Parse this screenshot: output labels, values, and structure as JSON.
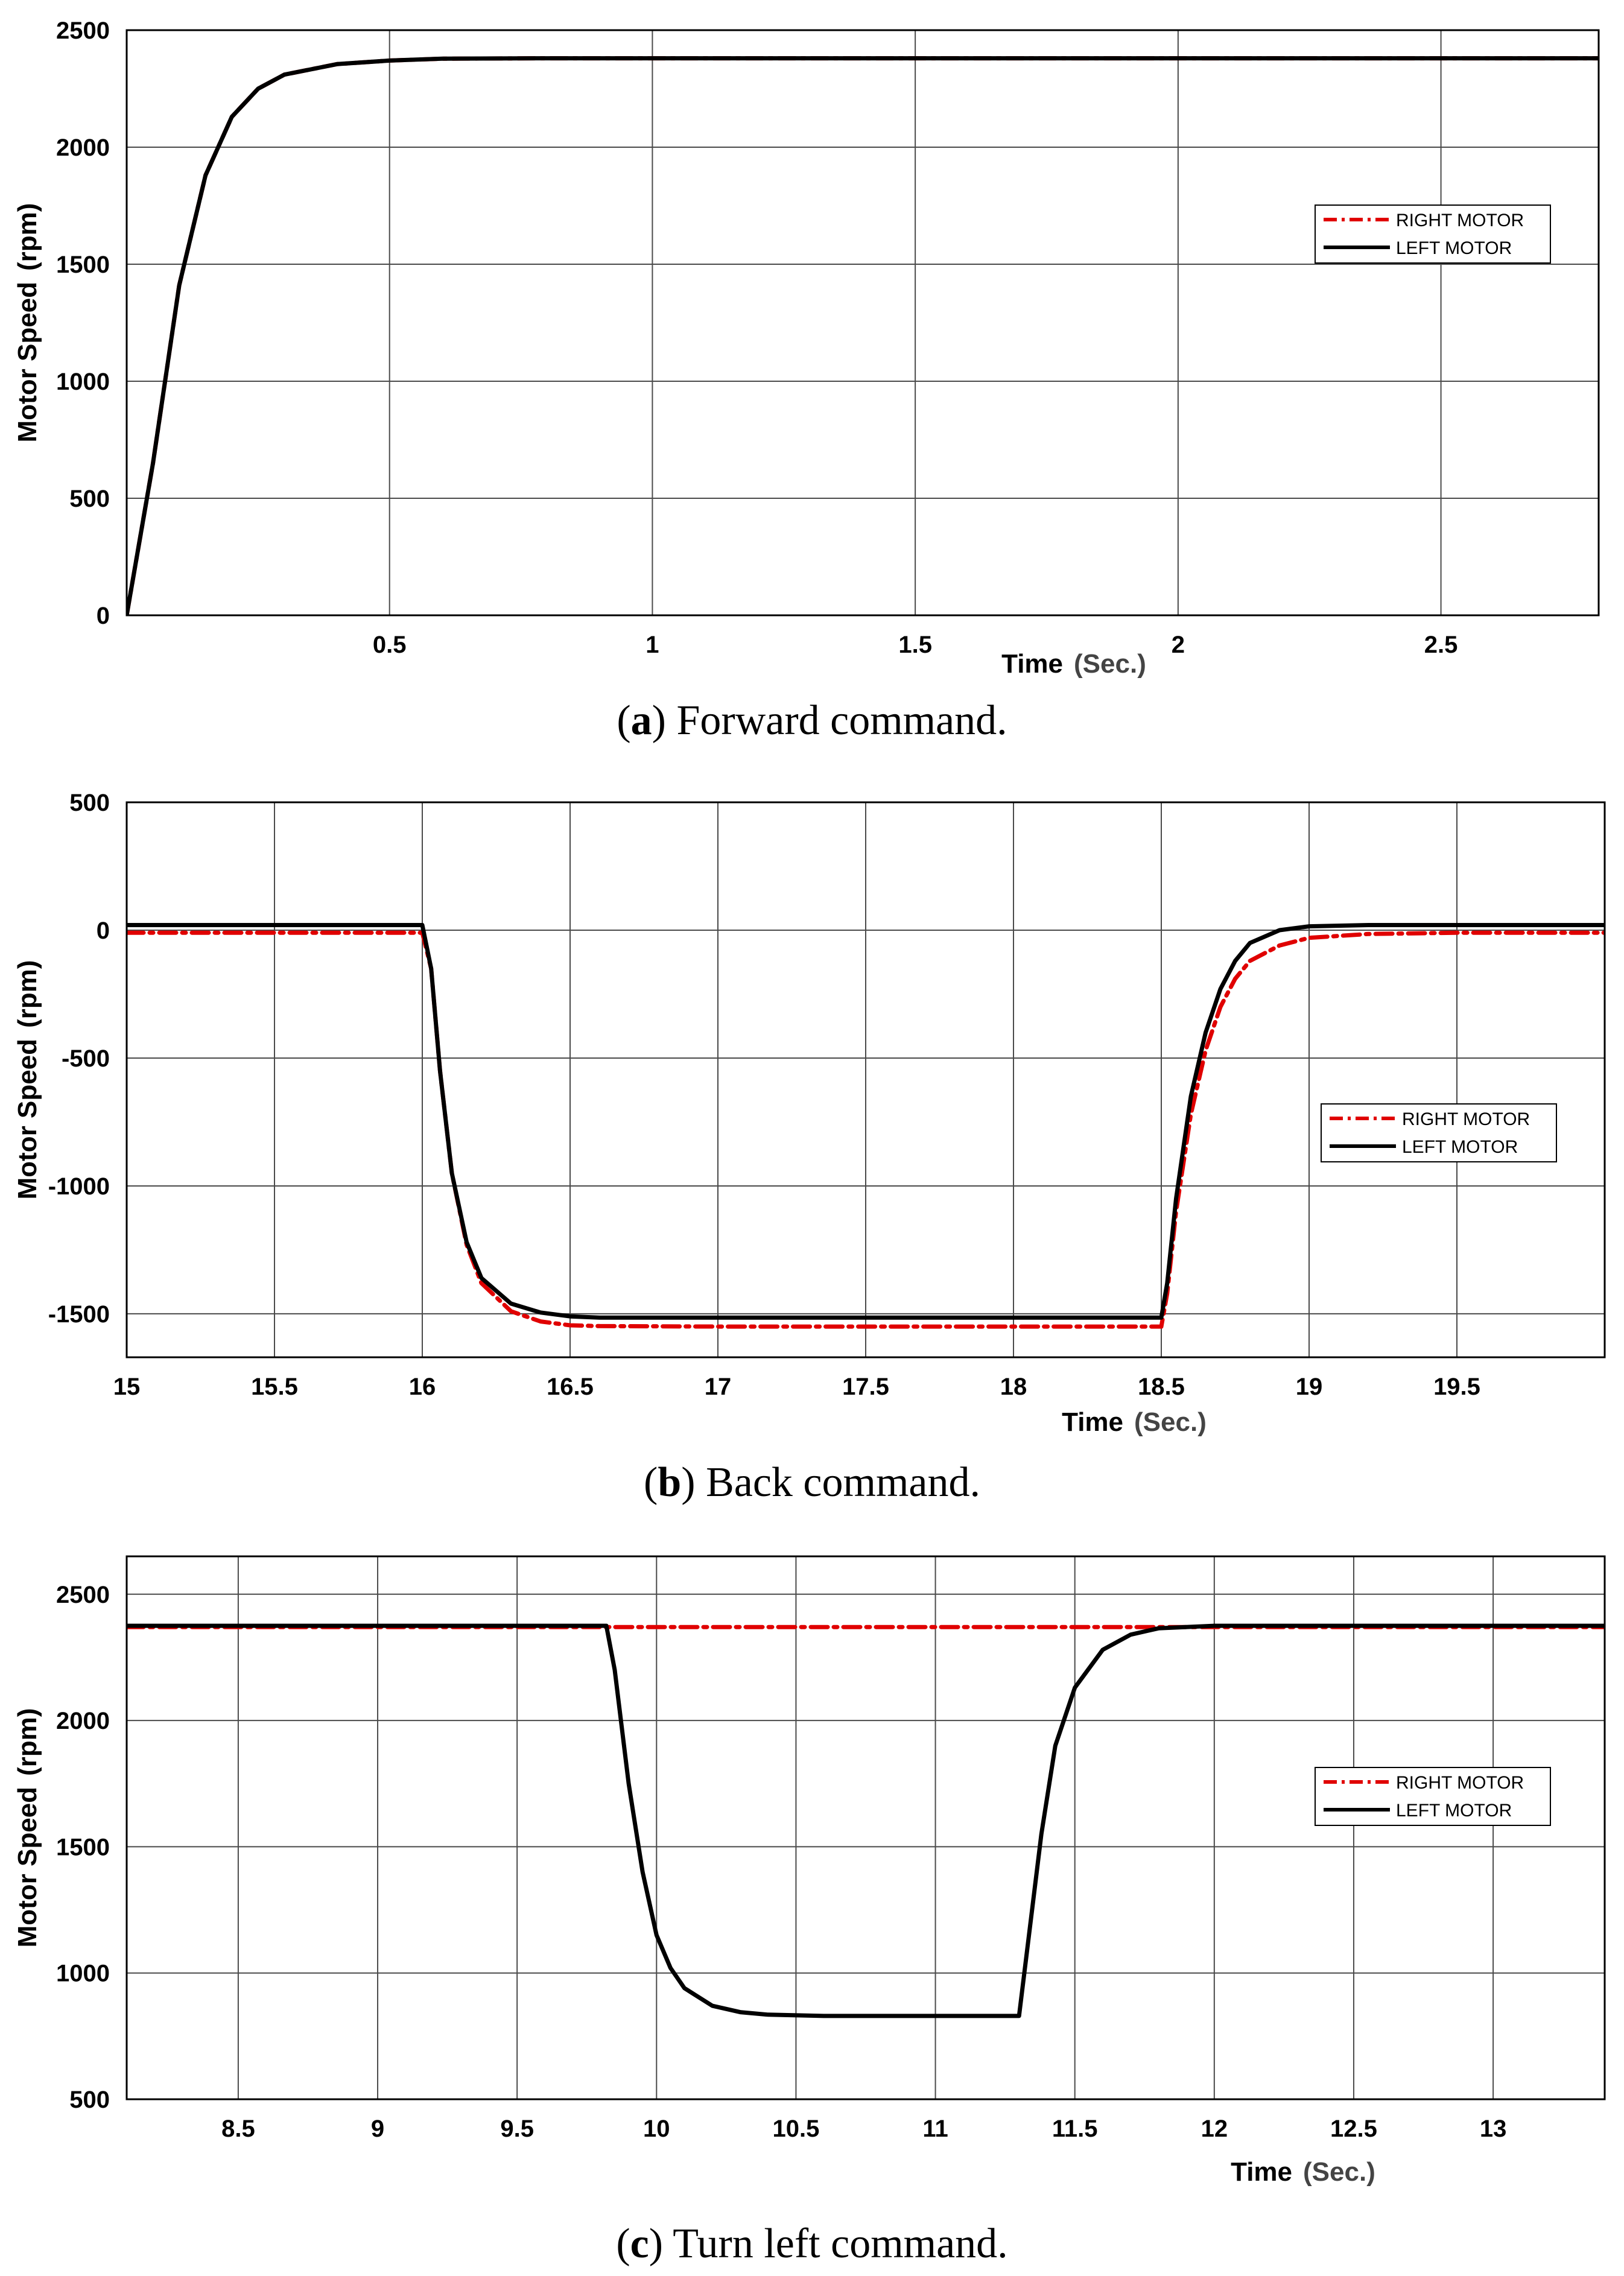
{
  "colors": {
    "right_motor": "#e00000",
    "left_motor": "#000000",
    "grid": "#4a4a4a",
    "axes": "#000000"
  },
  "chart_data": [
    {
      "id": "a",
      "type": "line",
      "caption_letter": "a",
      "caption_text": "Forward command.",
      "xlabel": "Time",
      "xlabel_unit": "(Sec.)",
      "ylabel": "Motor Speed",
      "ylabel_unit": "(rpm)",
      "xlim": [
        0,
        2.8
      ],
      "ylim": [
        0,
        2500
      ],
      "xticks": [
        0.5,
        1,
        1.5,
        2,
        2.5
      ],
      "xtick_labels": [
        "0.5",
        "1",
        "1.5",
        "2",
        "2.5"
      ],
      "yticks": [
        0,
        500,
        1000,
        1500,
        2000,
        2500
      ],
      "ytick_labels": [
        "0",
        "500",
        "1000",
        "1500",
        "2000",
        "2500"
      ],
      "grid": true,
      "legend_position": "right",
      "legend": [
        "RIGHT MOTOR",
        "LEFT MOTOR"
      ],
      "series": [
        {
          "name": "RIGHT MOTOR",
          "style": "dashdot",
          "x": [
            0,
            0.05,
            0.1,
            0.15,
            0.2,
            0.25,
            0.3,
            0.4,
            0.5,
            0.6,
            0.8,
            1.2,
            2.0,
            2.8
          ],
          "y": [
            0,
            650,
            1410,
            1880,
            2130,
            2250,
            2310,
            2355,
            2370,
            2378,
            2380,
            2380,
            2380,
            2380
          ]
        },
        {
          "name": "LEFT MOTOR",
          "style": "solid",
          "x": [
            0,
            0.05,
            0.1,
            0.15,
            0.2,
            0.25,
            0.3,
            0.4,
            0.5,
            0.6,
            0.8,
            1.2,
            2.0,
            2.8
          ],
          "y": [
            0,
            650,
            1410,
            1880,
            2130,
            2250,
            2310,
            2355,
            2370,
            2378,
            2380,
            2380,
            2380,
            2380
          ]
        }
      ]
    },
    {
      "id": "b",
      "type": "line",
      "caption_letter": "b",
      "caption_text": "Back command.",
      "xlabel": "Time",
      "xlabel_unit": "(Sec.)",
      "ylabel": "Motor Speed",
      "ylabel_unit": "(rpm)",
      "xlim": [
        15,
        20
      ],
      "ylim": [
        -1670,
        500
      ],
      "xticks": [
        15,
        15.5,
        16,
        16.5,
        17,
        17.5,
        18,
        18.5,
        19,
        19.5
      ],
      "xtick_labels": [
        "15",
        "15.5",
        "16",
        "16.5",
        "17",
        "17.5",
        "18",
        "18.5",
        "19",
        "19.5"
      ],
      "yticks": [
        -1500,
        -1000,
        -500,
        0,
        500
      ],
      "ytick_labels": [
        "-1500",
        "-1000",
        "-500",
        "0",
        "500"
      ],
      "grid": true,
      "legend_position": "right",
      "legend": [
        "RIGHT MOTOR",
        "LEFT MOTOR"
      ],
      "series": [
        {
          "name": "RIGHT MOTOR",
          "style": "dashdot",
          "x": [
            15,
            16.0,
            16.03,
            16.06,
            16.1,
            16.15,
            16.2,
            16.3,
            16.4,
            16.5,
            16.6,
            17.0,
            18.0,
            18.5,
            18.52,
            18.55,
            18.6,
            18.65,
            18.7,
            18.75,
            18.8,
            18.9,
            19.0,
            19.2,
            19.5,
            20.0
          ],
          "y": [
            -10,
            -10,
            -150,
            -550,
            -950,
            -1230,
            -1380,
            -1490,
            -1530,
            -1545,
            -1548,
            -1550,
            -1550,
            -1550,
            -1420,
            -1100,
            -720,
            -470,
            -300,
            -190,
            -120,
            -60,
            -30,
            -15,
            -10,
            -10
          ]
        },
        {
          "name": "LEFT MOTOR",
          "style": "solid",
          "x": [
            15,
            16.0,
            16.03,
            16.06,
            16.1,
            16.15,
            16.2,
            16.3,
            16.4,
            16.5,
            16.6,
            17.0,
            18.0,
            18.5,
            18.52,
            18.55,
            18.6,
            18.65,
            18.7,
            18.75,
            18.8,
            18.9,
            19.0,
            19.2,
            19.5,
            20.0
          ],
          "y": [
            20,
            20,
            -150,
            -550,
            -950,
            -1220,
            -1360,
            -1460,
            -1495,
            -1510,
            -1515,
            -1515,
            -1515,
            -1515,
            -1380,
            -1050,
            -650,
            -400,
            -230,
            -120,
            -50,
            0,
            15,
            20,
            20,
            20
          ]
        }
      ]
    },
    {
      "id": "c",
      "type": "line",
      "caption_letter": "c",
      "caption_text": "Turn left command.",
      "xlabel": "Time",
      "xlabel_unit": "(Sec.)",
      "ylabel": "Motor Speed",
      "ylabel_unit": "(rpm)",
      "xlim": [
        8.1,
        13.4
      ],
      "ylim": [
        500,
        2650
      ],
      "xticks": [
        8.5,
        9,
        9.5,
        10,
        10.5,
        11,
        11.5,
        12,
        12.5,
        13
      ],
      "xtick_labels": [
        "8.5",
        "9",
        "9.5",
        "10",
        "10.5",
        "11",
        "11.5",
        "12",
        "12.5",
        "13"
      ],
      "yticks": [
        500,
        1000,
        1500,
        2000,
        2500
      ],
      "ytick_labels": [
        "500",
        "1000",
        "1500",
        "2000",
        "2500"
      ],
      "grid": true,
      "legend_position": "right",
      "legend": [
        "RIGHT MOTOR",
        "LEFT MOTOR"
      ],
      "series": [
        {
          "name": "RIGHT MOTOR",
          "style": "dashdot",
          "x": [
            8.1,
            13.4
          ],
          "y": [
            2370,
            2370
          ]
        },
        {
          "name": "LEFT MOTOR",
          "style": "solid",
          "x": [
            8.1,
            9.82,
            9.85,
            9.9,
            9.95,
            10.0,
            10.05,
            10.1,
            10.2,
            10.3,
            10.4,
            10.6,
            11.0,
            11.3,
            11.33,
            11.38,
            11.43,
            11.5,
            11.6,
            11.7,
            11.8,
            12.0,
            13.4
          ],
          "y": [
            2375,
            2375,
            2200,
            1750,
            1400,
            1150,
            1020,
            940,
            870,
            845,
            835,
            830,
            830,
            830,
            1100,
            1550,
            1900,
            2130,
            2280,
            2340,
            2365,
            2375,
            2375
          ]
        }
      ]
    }
  ]
}
